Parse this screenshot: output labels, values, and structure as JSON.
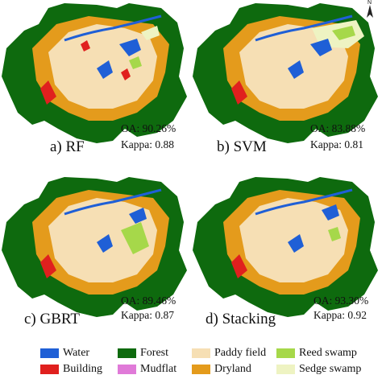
{
  "north_label": "N",
  "panels": [
    {
      "label": "a) RF",
      "oa": "OA: 90.26%",
      "kappa": "Kappa: 0.88"
    },
    {
      "label": "b) SVM",
      "oa": "OA: 83.88%",
      "kappa": "Kappa: 0.81"
    },
    {
      "label": "c) GBRT",
      "oa": "OA: 89.46%",
      "kappa": "Kappa: 0.87"
    },
    {
      "label": "d) Stacking",
      "oa": "OA: 93.30%",
      "kappa": "Kappa: 0.92"
    }
  ],
  "legend": [
    {
      "label": "Water",
      "color": "#1f5fd6"
    },
    {
      "label": "Forest",
      "color": "#0e6a0e"
    },
    {
      "label": "Paddy field",
      "color": "#f6dfb4"
    },
    {
      "label": "Reed swamp",
      "color": "#a6d84a"
    },
    {
      "label": "Building",
      "color": "#e0201e"
    },
    {
      "label": "Mudflat",
      "color": "#e07ad8"
    },
    {
      "label": "Dryland",
      "color": "#e49b1c"
    },
    {
      "label": "Sedge swamp",
      "color": "#eef3c2"
    }
  ],
  "colors": {
    "water": "#1f5fd6",
    "forest": "#0e6a0e",
    "paddy": "#f6dfb4",
    "reed": "#a6d84a",
    "building": "#e0201e",
    "mudflat": "#e07ad8",
    "dryland": "#e49b1c",
    "sedge": "#eef3c2"
  }
}
